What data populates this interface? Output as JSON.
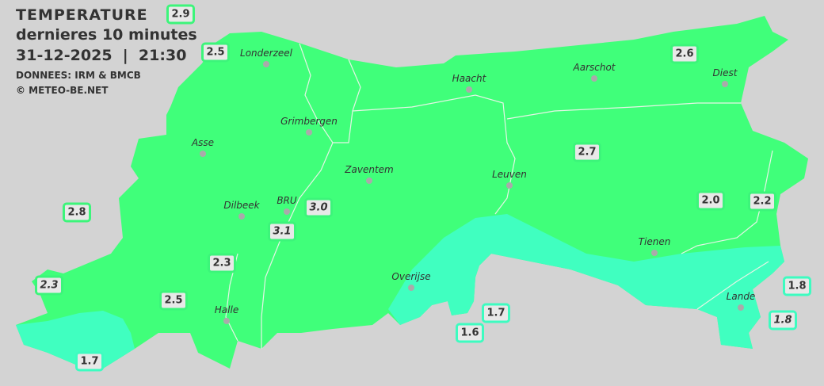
{
  "header": {
    "title": "TEMPERATURE",
    "subtitle": "dernieres 10 minutes",
    "datetime": "31-12-2025  |  21:30",
    "source": "DONNEES: IRM & BMCB",
    "copyright": "© METEO-BE.NET"
  },
  "colors": {
    "background": "#d3d3d3",
    "mild": "#40ff7a",
    "cool": "#40ffc0",
    "label_border_mild": "#3cf57a",
    "label_border_cool": "#3dfcc0"
  },
  "cities": [
    {
      "name": "Londerzeel"
    },
    {
      "name": "Haacht"
    },
    {
      "name": "Aarschot"
    },
    {
      "name": "Diest"
    },
    {
      "name": "Grimbergen"
    },
    {
      "name": "Asse"
    },
    {
      "name": "Zaventem"
    },
    {
      "name": "Leuven"
    },
    {
      "name": "Dilbeek"
    },
    {
      "name": "BRU"
    },
    {
      "name": "Tienen"
    },
    {
      "name": "Overijse"
    },
    {
      "name": "Halle"
    },
    {
      "name": "Lande"
    }
  ],
  "stations": [
    {
      "value": "2.9",
      "tone": "mild",
      "italic": false
    },
    {
      "value": "2.5",
      "tone": "mild",
      "italic": false
    },
    {
      "value": "2.6",
      "tone": "mild",
      "italic": false
    },
    {
      "value": "2.7",
      "tone": "mild",
      "italic": false
    },
    {
      "value": "2.8",
      "tone": "mild",
      "italic": false
    },
    {
      "value": "3.1",
      "tone": "mild",
      "italic": true
    },
    {
      "value": "3.0",
      "tone": "mild",
      "italic": true
    },
    {
      "value": "2.0",
      "tone": "mild",
      "italic": false
    },
    {
      "value": "2.2",
      "tone": "mild",
      "italic": false
    },
    {
      "value": "2.3",
      "tone": "mild",
      "italic": false
    },
    {
      "value": "2.3",
      "tone": "mild",
      "italic": true
    },
    {
      "value": "2.5",
      "tone": "mild",
      "italic": false
    },
    {
      "value": "1.7",
      "tone": "cool",
      "italic": false
    },
    {
      "value": "1.6",
      "tone": "cool",
      "italic": false
    },
    {
      "value": "1.7",
      "tone": "cool",
      "italic": false
    },
    {
      "value": "1.8",
      "tone": "cool",
      "italic": false
    },
    {
      "value": "1.8",
      "tone": "cool",
      "italic": true
    }
  ]
}
